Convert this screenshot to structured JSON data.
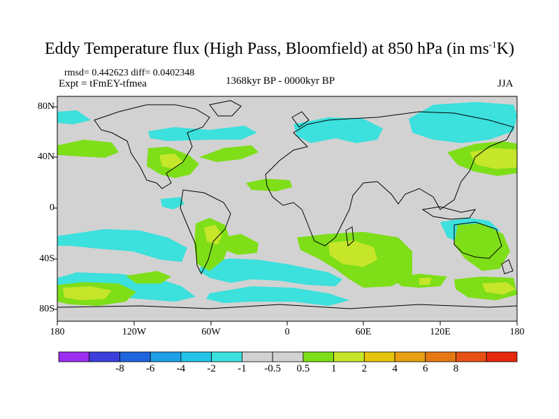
{
  "title": {
    "main": "Eddy Temperature flux (High Pass, Bloomfield) at 850 hPa (in ms",
    "sup": "-1",
    "end": "K)"
  },
  "stats": "rmsd= 0.442623 diff= 0.0402348",
  "experiment": "Expt = tFmEY-tfmea",
  "period": "1368kyr BP - 0000kyr BP",
  "season": "JJA",
  "lat_labels": [
    "80N",
    "40N",
    "0",
    "40S",
    "80S"
  ],
  "lon_labels": [
    "180",
    "120W",
    "60W",
    "0",
    "60E",
    "120E",
    "180"
  ],
  "colorbar": {
    "colors": [
      "#9b2ef0",
      "#3c3fdc",
      "#1e64dc",
      "#1ea0e6",
      "#23c3e8",
      "#3ce0dc",
      "#d2d2d2",
      "#d2d2d2",
      "#7ede18",
      "#c6e62a",
      "#e6c40c",
      "#e6a012",
      "#e67814",
      "#e65014",
      "#e6280c"
    ],
    "labels": [
      "-8",
      "-6",
      "-4",
      "-2",
      "-1",
      "-0.5",
      "0.5",
      "1",
      "2",
      "4",
      "6",
      "8"
    ]
  },
  "fill_colors": {
    "ocean_land": "#d2d2d2",
    "cyan": "#3ce0dc",
    "green": "#7ede18",
    "yellow": "#c6e62a"
  }
}
